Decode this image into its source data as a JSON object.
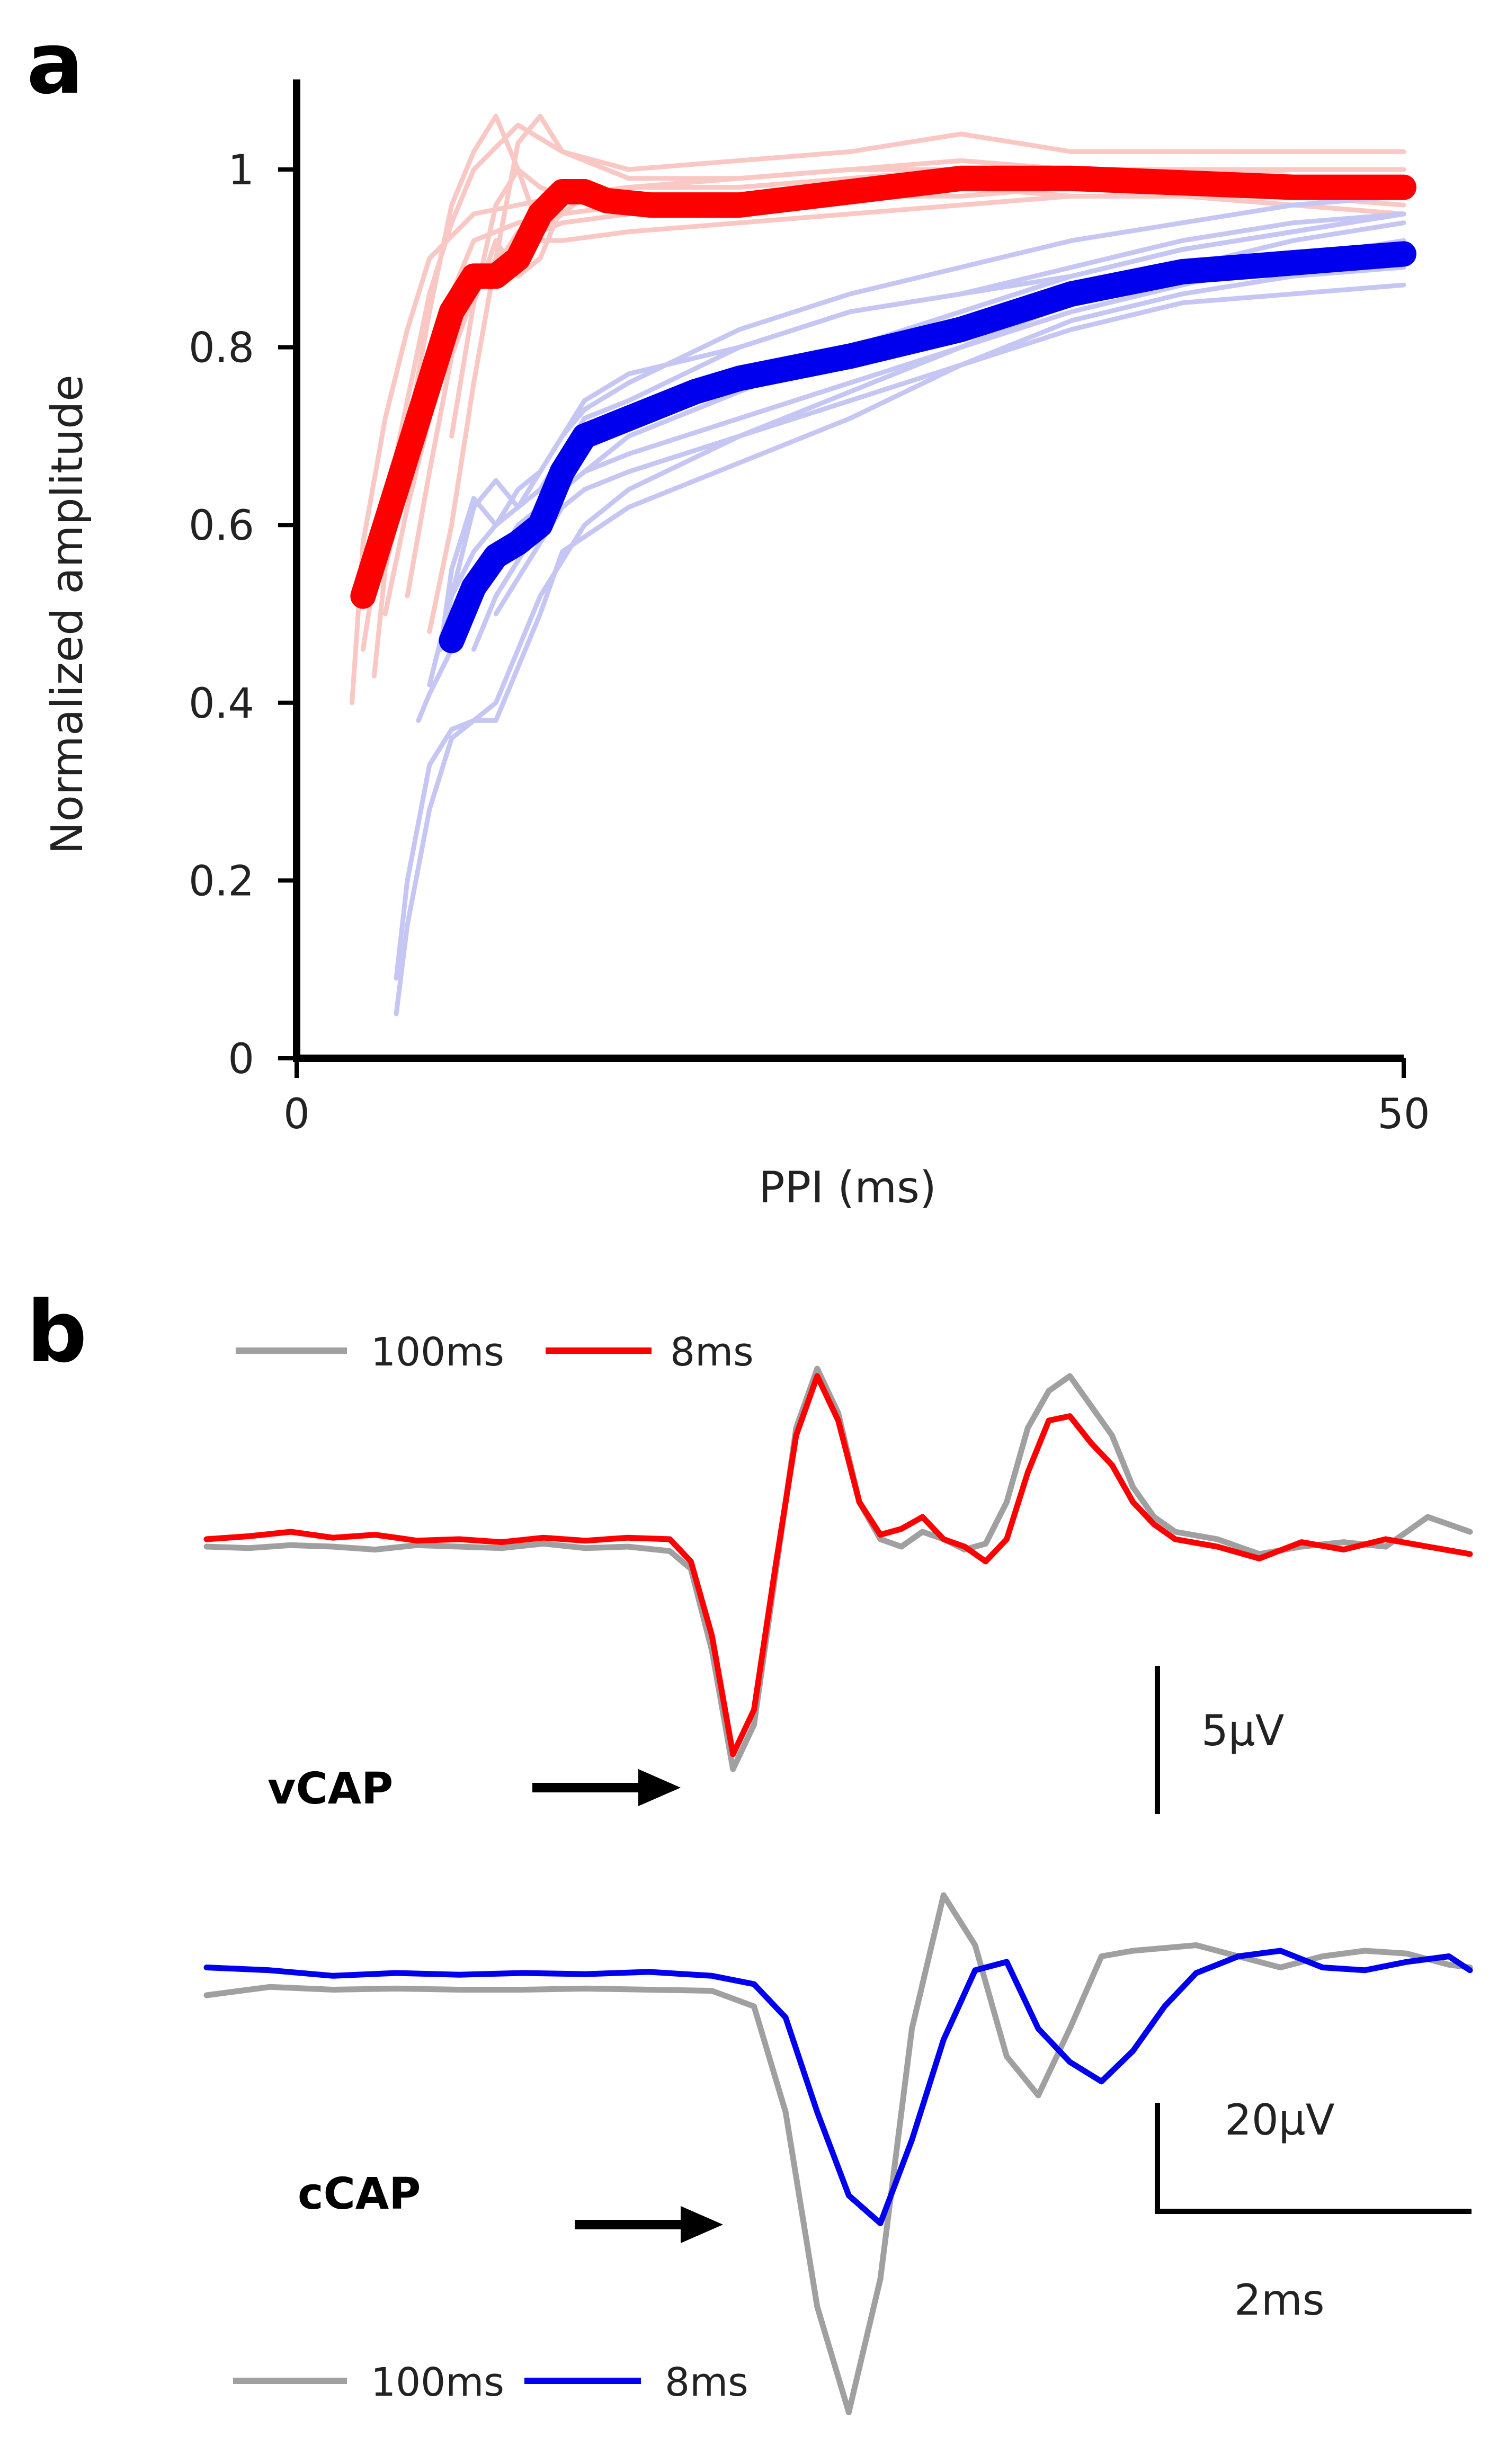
{
  "panel_a": {
    "letter": "a"
  },
  "panel_b": {
    "letter": "b"
  },
  "chart_data": [
    {
      "type": "line",
      "xlabel": "PPI (ms)",
      "ylabel": "Normalized amplitude",
      "xlim": [
        0,
        50
      ],
      "ylim": [
        0,
        1.1
      ],
      "x_ticks": [
        "0",
        "50"
      ],
      "x_tick_values": [
        0,
        50
      ],
      "y_ticks": [
        "0",
        "0.2",
        "0.4",
        "0.6",
        "0.8",
        "1"
      ],
      "y_tick_values": [
        0,
        0.2,
        0.4,
        0.6,
        0.8,
        1
      ],
      "grid": false,
      "colors": {
        "red_mean": "#ff0000",
        "red_indiv": "#f9c8c4",
        "blue_mean": "#0000ee",
        "blue_indiv": "#c6c6f4"
      },
      "series": [
        {
          "color": "red",
          "style": "mean",
          "x": [
            3,
            4,
            5,
            6,
            7,
            8,
            9,
            10,
            11,
            12,
            13,
            14,
            16,
            20,
            25,
            30,
            35,
            40,
            45,
            50
          ],
          "y": [
            0.52,
            0.6,
            0.68,
            0.76,
            0.84,
            0.88,
            0.88,
            0.9,
            0.95,
            0.975,
            0.975,
            0.965,
            0.96,
            0.96,
            0.975,
            0.99,
            0.99,
            0.985,
            0.98,
            0.98
          ]
        },
        {
          "color": "blue",
          "style": "mean",
          "x": [
            7,
            8,
            9,
            10,
            11,
            12,
            13,
            15,
            18,
            20,
            25,
            30,
            35,
            40,
            45,
            50
          ],
          "y": [
            0.47,
            0.53,
            0.565,
            0.58,
            0.6,
            0.66,
            0.7,
            0.72,
            0.75,
            0.765,
            0.79,
            0.82,
            0.86,
            0.885,
            0.895,
            0.905
          ]
        },
        {
          "color": "red",
          "style": "individual",
          "x": [
            2.5,
            3,
            4,
            5,
            6,
            8,
            10,
            12,
            15,
            20,
            25,
            30,
            35,
            40,
            45,
            50
          ],
          "y": [
            0.4,
            0.58,
            0.72,
            0.82,
            0.9,
            0.95,
            0.96,
            0.97,
            0.98,
            0.98,
            0.99,
            1.0,
            1.0,
            0.99,
            0.99,
            0.99
          ]
        },
        {
          "color": "red",
          "style": "individual",
          "x": [
            3,
            4,
            5,
            6,
            7,
            8,
            10,
            12,
            15,
            20,
            25,
            30,
            35,
            40,
            45,
            50
          ],
          "y": [
            0.46,
            0.62,
            0.74,
            0.86,
            0.94,
            1.0,
            1.05,
            1.02,
            1.0,
            1.01,
            1.02,
            1.04,
            1.02,
            1.02,
            1.02,
            1.02
          ]
        },
        {
          "color": "red",
          "style": "individual",
          "x": [
            3.5,
            4,
            5,
            6,
            7,
            8,
            10,
            12,
            15,
            20,
            25,
            30,
            35,
            40,
            45,
            50
          ],
          "y": [
            0.43,
            0.55,
            0.66,
            0.76,
            0.86,
            0.92,
            0.94,
            0.95,
            0.96,
            0.97,
            0.98,
            0.99,
            1.0,
            1.0,
            1.0,
            1.0
          ]
        },
        {
          "color": "red",
          "style": "individual",
          "x": [
            4,
            5,
            6,
            7,
            8,
            9,
            10,
            12,
            15,
            20,
            25,
            30,
            35,
            40,
            45,
            50
          ],
          "y": [
            0.5,
            0.62,
            0.72,
            0.8,
            0.86,
            0.9,
            0.92,
            0.94,
            0.95,
            0.96,
            0.97,
            0.97,
            0.98,
            0.98,
            0.98,
            0.97
          ]
        },
        {
          "color": "red",
          "style": "individual",
          "x": [
            4,
            5,
            6,
            7,
            8,
            9,
            10,
            11,
            12,
            15,
            20,
            25,
            30,
            35,
            40,
            45,
            50
          ],
          "y": [
            0.57,
            0.7,
            0.84,
            0.96,
            1.02,
            1.06,
            1.0,
            0.98,
            0.97,
            0.98,
            0.99,
            1.0,
            1.0,
            1.0,
            0.99,
            1.0,
            1.0
          ]
        },
        {
          "color": "red",
          "style": "individual",
          "x": [
            5,
            6,
            7,
            8,
            9,
            10,
            11,
            12,
            15,
            20,
            25,
            30,
            35,
            40,
            45,
            50
          ],
          "y": [
            0.52,
            0.66,
            0.79,
            0.86,
            0.89,
            0.93,
            0.92,
            0.92,
            0.93,
            0.94,
            0.95,
            0.96,
            0.97,
            0.97,
            0.97,
            0.96
          ]
        },
        {
          "color": "red",
          "style": "individual",
          "x": [
            6,
            7,
            8,
            9,
            10,
            11,
            12,
            15,
            20,
            25,
            30,
            35,
            40,
            45,
            50
          ],
          "y": [
            0.48,
            0.6,
            0.76,
            0.9,
            1.03,
            1.06,
            1.02,
            0.99,
            0.99,
            1.0,
            1.01,
            1.0,
            0.99,
            0.99,
            0.99
          ]
        },
        {
          "color": "red",
          "style": "individual",
          "x": [
            7,
            8,
            9,
            10,
            11,
            12,
            13,
            15,
            20,
            25,
            30,
            35,
            40,
            45,
            50
          ],
          "y": [
            0.7,
            0.85,
            0.92,
            0.88,
            0.9,
            0.96,
            0.98,
            0.96,
            0.97,
            0.98,
            0.98,
            0.97,
            0.97,
            0.96,
            0.95
          ]
        },
        {
          "color": "red",
          "style": "individual",
          "x": [
            8,
            9,
            10,
            11,
            12,
            13,
            15,
            20,
            25,
            30,
            35,
            40,
            45,
            50
          ],
          "y": [
            0.85,
            0.96,
            1.0,
            0.93,
            0.95,
            0.97,
            0.98,
            0.98,
            0.99,
            1.0,
            1.0,
            0.99,
            0.98,
            0.98
          ]
        },
        {
          "color": "blue",
          "style": "individual",
          "x": [
            4.5,
            5,
            6,
            7,
            8,
            9,
            10,
            11,
            12,
            13,
            15,
            20,
            25,
            30,
            35,
            40,
            45,
            50
          ],
          "y": [
            0.05,
            0.15,
            0.28,
            0.36,
            0.38,
            0.4,
            0.46,
            0.52,
            0.56,
            0.6,
            0.64,
            0.7,
            0.74,
            0.78,
            0.82,
            0.85,
            0.86,
            0.87
          ]
        },
        {
          "color": "blue",
          "style": "individual",
          "x": [
            4.5,
            5,
            6,
            7,
            8,
            9,
            10,
            11,
            12,
            15,
            20,
            25,
            30,
            35,
            40,
            45,
            50
          ],
          "y": [
            0.09,
            0.2,
            0.33,
            0.37,
            0.38,
            0.38,
            0.44,
            0.5,
            0.57,
            0.62,
            0.67,
            0.72,
            0.78,
            0.83,
            0.86,
            0.88,
            0.89
          ]
        },
        {
          "color": "blue",
          "style": "individual",
          "x": [
            5.5,
            6,
            7,
            8,
            9,
            10,
            11,
            12,
            13,
            15,
            20,
            25,
            30,
            35,
            40,
            45,
            50
          ],
          "y": [
            0.38,
            0.41,
            0.46,
            0.5,
            0.56,
            0.6,
            0.62,
            0.64,
            0.66,
            0.68,
            0.72,
            0.76,
            0.8,
            0.84,
            0.87,
            0.9,
            0.92
          ]
        },
        {
          "color": "blue",
          "style": "individual",
          "x": [
            6,
            7,
            8,
            9,
            10,
            11,
            12,
            13,
            15,
            20,
            25,
            30,
            35,
            40,
            45,
            50
          ],
          "y": [
            0.42,
            0.52,
            0.57,
            0.6,
            0.62,
            0.64,
            0.68,
            0.72,
            0.74,
            0.8,
            0.84,
            0.86,
            0.88,
            0.91,
            0.93,
            0.95
          ]
        },
        {
          "color": "blue",
          "style": "individual",
          "x": [
            6.5,
            7,
            8,
            9,
            10,
            11,
            12,
            13,
            15,
            20,
            25,
            30,
            35,
            40,
            45,
            50
          ],
          "y": [
            0.46,
            0.55,
            0.63,
            0.6,
            0.64,
            0.66,
            0.7,
            0.73,
            0.76,
            0.82,
            0.86,
            0.89,
            0.92,
            0.94,
            0.96,
            0.97
          ]
        },
        {
          "color": "blue",
          "style": "individual",
          "x": [
            7,
            8,
            9,
            10,
            11,
            12,
            13,
            15,
            20,
            25,
            30,
            35,
            40,
            45,
            50
          ],
          "y": [
            0.52,
            0.62,
            0.65,
            0.62,
            0.66,
            0.7,
            0.74,
            0.77,
            0.8,
            0.84,
            0.86,
            0.89,
            0.92,
            0.94,
            0.95
          ]
        },
        {
          "color": "blue",
          "style": "individual",
          "x": [
            8,
            9,
            10,
            11,
            12,
            13,
            15,
            20,
            25,
            30,
            35,
            40,
            45,
            50
          ],
          "y": [
            0.46,
            0.52,
            0.56,
            0.6,
            0.64,
            0.66,
            0.7,
            0.75,
            0.8,
            0.84,
            0.88,
            0.91,
            0.93,
            0.95
          ]
        },
        {
          "color": "blue",
          "style": "individual",
          "x": [
            9,
            10,
            11,
            12,
            13,
            15,
            20,
            25,
            30,
            35,
            40,
            45,
            50
          ],
          "y": [
            0.5,
            0.54,
            0.58,
            0.62,
            0.64,
            0.66,
            0.7,
            0.75,
            0.8,
            0.85,
            0.89,
            0.92,
            0.94
          ]
        }
      ]
    },
    {
      "type": "line",
      "title": "vCAP",
      "scale_bar_label": "5μV",
      "arrow": true,
      "legend": [
        {
          "label": "100ms",
          "color": "#a0a0a0"
        },
        {
          "label": "8ms",
          "color": "#ff0000"
        }
      ],
      "series": [
        {
          "name": "100ms",
          "color": "#a0a0a0",
          "x": [
            0,
            0.4,
            0.8,
            1.2,
            1.6,
            2.0,
            2.4,
            2.8,
            3.2,
            3.6,
            4.0,
            4.4,
            4.6,
            4.8,
            5.0,
            5.2,
            5.4,
            5.6,
            5.8,
            6.0,
            6.2,
            6.4,
            6.6,
            6.8,
            7.0,
            7.2,
            7.4,
            7.6,
            7.8,
            8.0,
            8.2,
            8.4,
            8.6,
            8.8,
            9.0,
            9.2,
            9.6,
            10.0,
            10.4,
            10.8,
            11.2,
            11.6,
            12.0
          ],
          "y": [
            0.0,
            -0.1,
            0.1,
            0.0,
            -0.2,
            0.1,
            0.0,
            -0.1,
            0.2,
            -0.1,
            0.0,
            -0.3,
            -1.5,
            -7.0,
            -15.0,
            -12.0,
            -2.0,
            8.0,
            12.0,
            9.0,
            3.0,
            0.5,
            0.0,
            1.0,
            0.5,
            -0.2,
            0.2,
            3.0,
            8.0,
            10.5,
            11.5,
            9.5,
            7.5,
            4.0,
            2.0,
            1.0,
            0.5,
            -0.5,
            0.0,
            0.3,
            0.0,
            2.0,
            1.0
          ]
        },
        {
          "name": "8ms",
          "color": "#ff0000",
          "x": [
            0,
            0.4,
            0.8,
            1.2,
            1.6,
            2.0,
            2.4,
            2.8,
            3.2,
            3.6,
            4.0,
            4.4,
            4.6,
            4.8,
            5.0,
            5.2,
            5.4,
            5.6,
            5.8,
            6.0,
            6.2,
            6.4,
            6.6,
            6.8,
            7.0,
            7.2,
            7.4,
            7.6,
            7.8,
            8.0,
            8.2,
            8.4,
            8.6,
            8.8,
            9.0,
            9.2,
            9.6,
            10.0,
            10.4,
            10.8,
            11.2,
            11.6,
            12.0
          ],
          "y": [
            0.5,
            0.7,
            1.0,
            0.6,
            0.8,
            0.4,
            0.5,
            0.3,
            0.6,
            0.4,
            0.6,
            0.5,
            -1.0,
            -6.0,
            -14.0,
            -11.0,
            -1.5,
            7.5,
            11.5,
            8.5,
            3.0,
            0.8,
            1.2,
            2.0,
            0.5,
            0.0,
            -1.0,
            0.5,
            5.0,
            8.5,
            8.8,
            7.0,
            5.5,
            3.0,
            1.5,
            0.5,
            0.0,
            -0.8,
            0.3,
            -0.2,
            0.5,
            0.0,
            -0.5
          ]
        }
      ]
    },
    {
      "type": "line",
      "title": "cCAP",
      "scale_bar_label": "20μV",
      "time_scale_label": "2ms",
      "arrow": true,
      "legend": [
        {
          "label": "100ms",
          "color": "#a0a0a0"
        },
        {
          "label": "8ms",
          "color": "#0000ee"
        }
      ],
      "series": [
        {
          "name": "100ms",
          "color": "#a0a0a0",
          "x": [
            0,
            0.6,
            1.2,
            1.8,
            2.4,
            3.0,
            3.6,
            4.2,
            4.8,
            5.2,
            5.5,
            5.8,
            6.1,
            6.4,
            6.7,
            7.0,
            7.3,
            7.6,
            7.9,
            8.2,
            8.5,
            8.8,
            9.1,
            9.4,
            9.8,
            10.2,
            10.6,
            11.0,
            11.4,
            11.8,
            12.0
          ],
          "y": [
            -4.0,
            -2.5,
            -3.0,
            -2.8,
            -3.0,
            -3.0,
            -2.8,
            -3.0,
            -3.2,
            -6.0,
            -25.0,
            -60.0,
            -79.0,
            -55.0,
            -10.0,
            14.0,
            5.0,
            -15.0,
            -22.0,
            -10.0,
            3.0,
            4.0,
            4.5,
            5.0,
            3.0,
            1.0,
            3.0,
            4.0,
            3.5,
            1.5,
            1.0
          ]
        },
        {
          "name": "8ms",
          "color": "#0000ee",
          "x": [
            0,
            0.6,
            1.2,
            1.8,
            2.4,
            3.0,
            3.6,
            4.2,
            4.8,
            5.2,
            5.5,
            5.8,
            6.1,
            6.4,
            6.7,
            7.0,
            7.3,
            7.6,
            7.9,
            8.2,
            8.5,
            8.8,
            9.1,
            9.4,
            9.8,
            10.2,
            10.6,
            11.0,
            11.4,
            11.8,
            12.0
          ],
          "y": [
            1.0,
            0.5,
            -0.5,
            0.0,
            -0.3,
            0.0,
            -0.2,
            0.2,
            -0.5,
            -2.0,
            -8.0,
            -25.0,
            -40.0,
            -45.0,
            -30.0,
            -12.0,
            0.5,
            2.0,
            -10.0,
            -16.0,
            -19.5,
            -14.0,
            -6.0,
            0.0,
            3.0,
            4.0,
            1.0,
            0.5,
            2.0,
            3.0,
            0.5
          ]
        }
      ]
    }
  ]
}
